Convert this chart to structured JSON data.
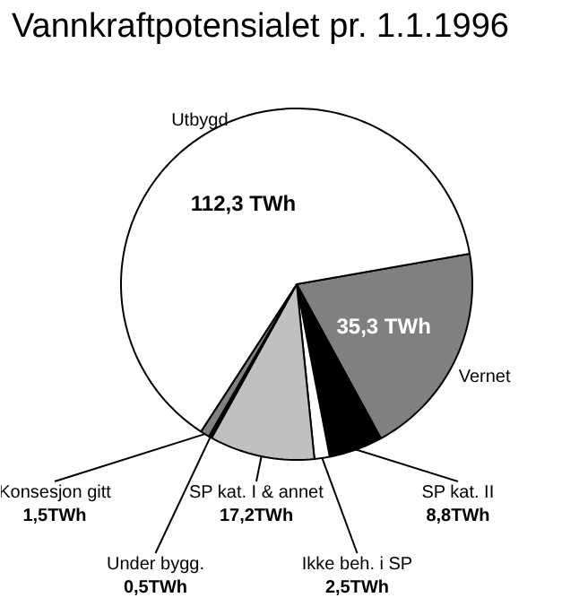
{
  "chart_data": {
    "type": "pie",
    "title": "Vannkraftpotensialet pr. 1.1.1996",
    "categories": [
      "Vernet",
      "SP kat. II",
      "Ikke beh. i SP",
      "SP kat. I & annet",
      "Under bygg.",
      "Konsesjon gitt",
      "Utbygd"
    ],
    "values": [
      35.3,
      8.8,
      2.5,
      17.2,
      0.5,
      1.5,
      112.3
    ],
    "colors": [
      "#808080",
      "#000000",
      "#ffffff",
      "#c0c0c0",
      "#000000",
      "#808080",
      "#ffffff"
    ],
    "value_labels": [
      "35,3 TWh",
      "8,8TWh",
      "2,5TWh",
      "17,2TWh",
      "0,5TWh",
      "1,5TWh",
      "112,3 TWh"
    ]
  }
}
